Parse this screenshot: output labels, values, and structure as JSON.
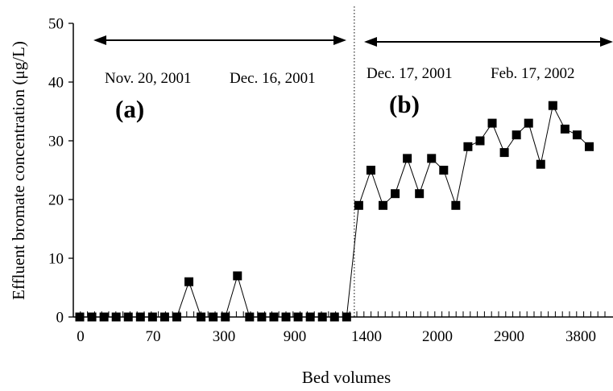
{
  "chart_data": {
    "type": "line",
    "title": "",
    "xlabel": "Bed volumes",
    "ylabel": "Effluent bromate concentration (μg/L)",
    "ylim": [
      0,
      50
    ],
    "yticks": [
      0,
      10,
      20,
      30,
      40,
      50
    ],
    "x_tick_labels": [
      "0",
      "70",
      "300",
      "900",
      "1400",
      "2000",
      "2900",
      "3800"
    ],
    "grid": false,
    "legend": "none",
    "marker": "filled-square",
    "color": "#000000",
    "series": [
      {
        "values": [
          0,
          0,
          0,
          0,
          0,
          0,
          0,
          0,
          0,
          6,
          0,
          0,
          0,
          7,
          0,
          0,
          0,
          0,
          0,
          0,
          0,
          0,
          0,
          19,
          25,
          19,
          21,
          27,
          21,
          27,
          25,
          19,
          29,
          30,
          33,
          28,
          31,
          33,
          26,
          36,
          32,
          31,
          29
        ]
      }
    ],
    "period_divider_after_point": 22,
    "annotations": {
      "period_a": {
        "start": "Nov. 20, 2001",
        "end": "Dec. 16, 2001",
        "label": "(a)"
      },
      "period_b": {
        "start": "Dec. 17, 2001",
        "end": "Feb. 17, 2002",
        "label": "(b)"
      }
    }
  }
}
